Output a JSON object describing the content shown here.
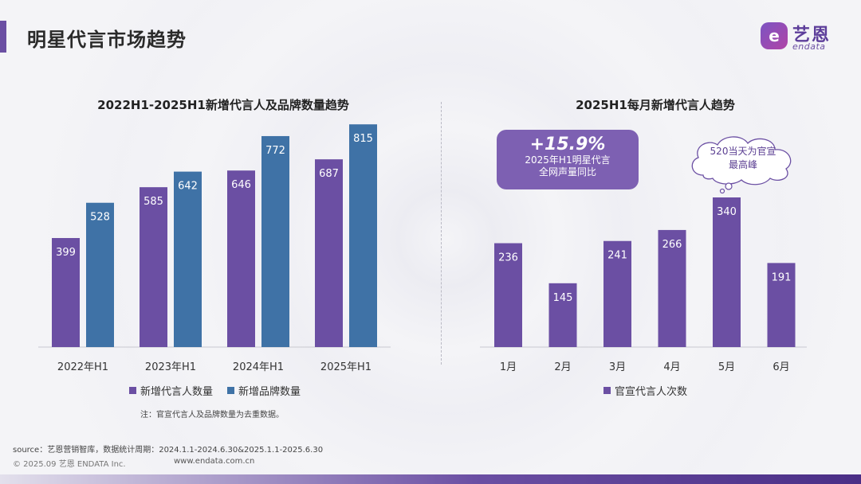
{
  "page": {
    "title": "明星代言市场趋势"
  },
  "logo": {
    "mark": "e",
    "name_cn": "艺恩",
    "name_en": "endata"
  },
  "colors": {
    "purple": "#6b4fa3",
    "blue": "#3f72a6",
    "callout": "#7d60b2"
  },
  "left_chart": {
    "title": "2022H1-2025H1新增代言人及品牌数量趋势",
    "note": "注：官宣代言人及品牌数量为去重数据。"
  },
  "right_chart": {
    "title": "2025H1每月新增代言人趋势"
  },
  "callout": {
    "value": "+15.9%",
    "line1": "2025年H1明星代言",
    "line2": "全网声量同比"
  },
  "cloud": {
    "line1": "520当天为官宣",
    "line2": "最高峰"
  },
  "chart_data": [
    {
      "type": "bar",
      "title": "2022H1-2025H1新增代言人及品牌数量趋势",
      "categories": [
        "2022年H1",
        "2023年H1",
        "2024年H1",
        "2025年H1"
      ],
      "series": [
        {
          "name": "新增代言人数量",
          "values": [
            399,
            585,
            646,
            687
          ],
          "color": "#6b4fa3"
        },
        {
          "name": "新增品牌数量",
          "values": [
            528,
            642,
            772,
            815
          ],
          "color": "#3f72a6"
        }
      ],
      "ylim": [
        0,
        900
      ],
      "grid": false,
      "legend": "bottom"
    },
    {
      "type": "bar",
      "title": "2025H1每月新增代言人趋势",
      "categories": [
        "1月",
        "2月",
        "3月",
        "4月",
        "5月",
        "6月"
      ],
      "series": [
        {
          "name": "官宣代言人次数",
          "values": [
            236,
            145,
            241,
            266,
            340,
            191
          ],
          "color": "#6b4fa3"
        }
      ],
      "ylim": [
        0,
        500
      ],
      "grid": false,
      "legend": "bottom"
    }
  ],
  "footer": {
    "source": "source：艺恩营销智库，数据统计周期：2024.1.1-2024.6.30&2025.1.1-2025.6.30",
    "copyright": "© 2025.09  艺恩 ENDATA Inc.",
    "website": "www.endata.com.cn"
  }
}
